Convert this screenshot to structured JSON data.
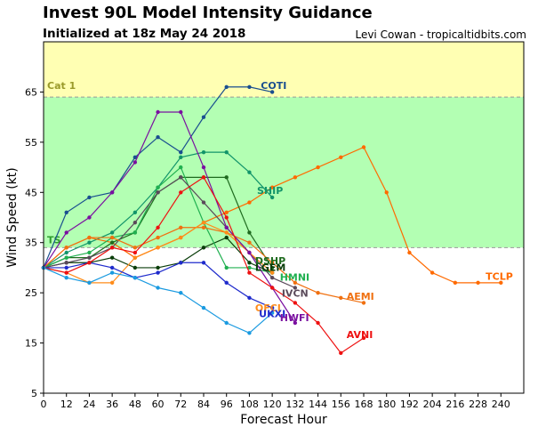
{
  "header": {
    "title": "Invest 90L Model Intensity Guidance",
    "subtitle": "Initialized at 18z May 24 2018",
    "credit": "Levi Cowan - tropicaltidbits.com"
  },
  "chart_data": {
    "type": "line",
    "title": "Invest 90L Model Intensity Guidance",
    "subtitle": "Initialized at 18z May 24 2018",
    "xlabel": "Forecast Hour",
    "ylabel": "Wind Speed (kt)",
    "xlim": [
      0,
      252
    ],
    "ylim": [
      5,
      75
    ],
    "xticks": [
      0,
      12,
      24,
      36,
      48,
      60,
      72,
      84,
      96,
      108,
      120,
      132,
      144,
      156,
      168,
      180,
      192,
      204,
      216,
      228,
      240
    ],
    "yticks": [
      5,
      15,
      25,
      35,
      45,
      55,
      65
    ],
    "grid": false,
    "bands": [
      {
        "name": "TS",
        "from": 34,
        "to": 64,
        "color": "#b3ffb3",
        "label_color": "#2f9e2f"
      },
      {
        "name": "Cat 1",
        "from": 64,
        "to": 75,
        "color": "#ffffb3",
        "label_color": "#9a9a2a"
      }
    ],
    "series": [
      {
        "name": "COTI",
        "color": "#1a4f8f",
        "x": [
          0,
          12,
          24,
          36,
          48,
          60,
          72,
          84,
          96,
          108,
          120
        ],
        "y": [
          30,
          41,
          44,
          45,
          52,
          56,
          53,
          60,
          66,
          66,
          65
        ]
      },
      {
        "name": "SHIP",
        "color": "#12946a",
        "x": [
          0,
          12,
          24,
          36,
          48,
          60,
          72,
          84,
          96,
          108,
          120
        ],
        "y": [
          30,
          33,
          35,
          37,
          41,
          46,
          52,
          53,
          53,
          49,
          44
        ]
      },
      {
        "name": "TCLP",
        "color": "#ff6a00",
        "x": [
          0,
          12,
          24,
          36,
          48,
          60,
          72,
          84,
          96,
          108,
          120,
          132,
          144,
          156,
          168,
          180,
          192,
          204,
          216,
          228,
          240
        ],
        "y": [
          30,
          34,
          36,
          35,
          32,
          34,
          36,
          39,
          41,
          43,
          46,
          48,
          50,
          52,
          54,
          45,
          33,
          29,
          27,
          27,
          27
        ]
      },
      {
        "name": "DSHP",
        "color": "#1f6b1f",
        "x": [
          0,
          12,
          24,
          36,
          48,
          60,
          72,
          84,
          96,
          108,
          120
        ],
        "y": [
          30,
          32,
          32,
          35,
          37,
          45,
          48,
          48,
          48,
          37,
          30
        ]
      },
      {
        "name": "LGEM",
        "color": "#0a3d0a",
        "x": [
          0,
          12,
          24,
          36,
          48,
          60,
          72,
          84,
          96,
          108,
          120
        ],
        "y": [
          30,
          31,
          31,
          32,
          30,
          30,
          31,
          34,
          36,
          31,
          29
        ]
      },
      {
        "name": "HMNI",
        "color": "#20b050",
        "x": [
          0,
          12,
          24,
          36,
          48,
          60,
          72,
          84,
          96,
          108,
          120
        ],
        "y": [
          30,
          32,
          33,
          36,
          37,
          46,
          50,
          39,
          30,
          30,
          29
        ]
      },
      {
        "name": "IVCN",
        "color": "#5a4a5a",
        "x": [
          0,
          12,
          24,
          36,
          48,
          60,
          72,
          84,
          96,
          108,
          120,
          132
        ],
        "y": [
          30,
          31,
          32,
          34,
          39,
          45,
          48,
          43,
          38,
          33,
          28,
          26
        ]
      },
      {
        "name": "AEMI",
        "color": "#f07010",
        "x": [
          0,
          12,
          24,
          36,
          48,
          60,
          72,
          84,
          96,
          108,
          120,
          132,
          144,
          156,
          168
        ],
        "y": [
          30,
          34,
          36,
          36,
          34,
          36,
          38,
          38,
          37,
          35,
          31,
          27,
          25,
          24,
          23
        ]
      },
      {
        "name": "OFCI",
        "color": "#ff8c1a",
        "x": [
          0,
          12,
          24,
          36,
          48,
          60,
          72,
          84,
          96,
          108,
          120
        ],
        "y": [
          30,
          29,
          27,
          27,
          32,
          34,
          36,
          39,
          37,
          33,
          29
        ]
      },
      {
        "name": "UKXI",
        "color": "#1f2bcc",
        "x": [
          0,
          12,
          24,
          36,
          48,
          60,
          72,
          84,
          96,
          108,
          120
        ],
        "y": [
          30,
          30,
          31,
          30,
          28,
          29,
          31,
          31,
          27,
          24,
          22
        ]
      },
      {
        "name": "HWFI",
        "color": "#7a10a0",
        "x": [
          0,
          12,
          24,
          36,
          48,
          60,
          72,
          84,
          96,
          108,
          120,
          132
        ],
        "y": [
          30,
          37,
          40,
          45,
          51,
          61,
          61,
          50,
          38,
          33,
          26,
          19
        ]
      },
      {
        "name": "AVNI",
        "color": "#ee1111",
        "x": [
          0,
          12,
          24,
          36,
          48,
          60,
          72,
          84,
          96,
          108,
          120,
          132,
          144,
          156,
          168
        ],
        "y": [
          30,
          29,
          31,
          34,
          33,
          38,
          45,
          48,
          40,
          29,
          26,
          23,
          19,
          13,
          16
        ]
      },
      {
        "name": "",
        "color": "#1a9ae0",
        "x": [
          0,
          12,
          24,
          36,
          48,
          60,
          72,
          84,
          96,
          108,
          120
        ],
        "y": [
          30,
          28,
          27,
          29,
          28,
          26,
          25,
          22,
          19,
          17,
          21
        ]
      }
    ],
    "series_labels": [
      {
        "text": "COTI",
        "color": "#1a4f8f",
        "x": 114,
        "y": 66.3
      },
      {
        "text": "SHIP",
        "color": "#12946a",
        "x": 112,
        "y": 45.4
      },
      {
        "text": "TCLP",
        "color": "#ff6a00",
        "x": 232,
        "y": 28.3
      },
      {
        "text": "DSHP",
        "color": "#1f6b1f",
        "x": 111,
        "y": 31.4
      },
      {
        "text": "LGEM",
        "color": "#0a3d0a",
        "x": 111,
        "y": 30.1
      },
      {
        "text": "HMNI",
        "color": "#20b050",
        "x": 124,
        "y": 28.1
      },
      {
        "text": "IVCN",
        "color": "#5a4a5a",
        "x": 125,
        "y": 24.9
      },
      {
        "text": "AEMI",
        "color": "#f07010",
        "x": 159,
        "y": 24.3
      },
      {
        "text": "OFCI",
        "color": "#ff8c1a",
        "x": 111,
        "y": 22.0
      },
      {
        "text": "UKXI",
        "color": "#1f2bcc",
        "x": 113,
        "y": 20.9
      },
      {
        "text": "HWFI",
        "color": "#7a10a0",
        "x": 124,
        "y": 20.1
      },
      {
        "text": "AVNI",
        "color": "#ee1111",
        "x": 159,
        "y": 16.7
      }
    ]
  }
}
